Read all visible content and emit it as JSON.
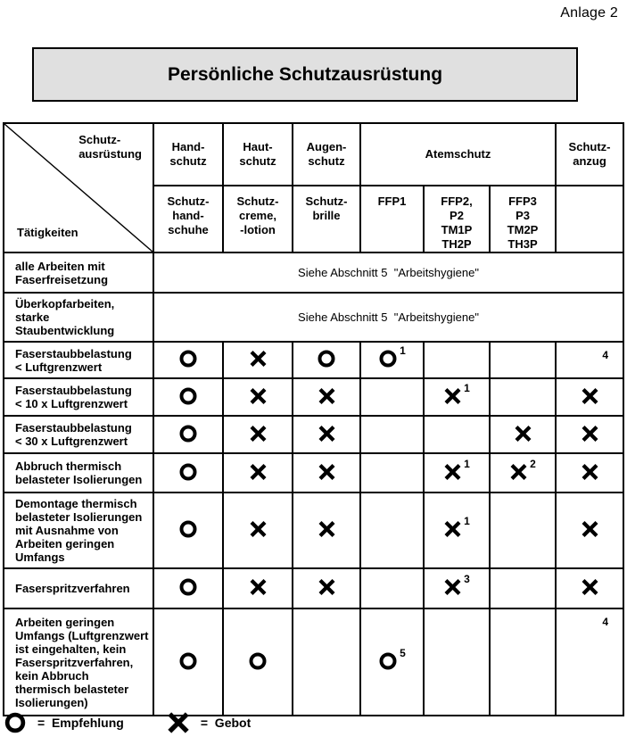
{
  "page": {
    "annotation": "Anlage 2"
  },
  "title": "Persönliche Schutzausrüstung",
  "table": {
    "corner": {
      "top_right": "Schutz-\nausrüstung",
      "bottom_left": "Tätigkeiten"
    },
    "header_row1": [
      "Hand-\nschutz",
      "Haut-\nschutz",
      "Augen-\nschutz",
      "Atemschutz",
      "Schutz-\nanzug"
    ],
    "header_row2": [
      "Schutz-\nhand-\nschuhe",
      "Schutz-\ncreme,\n-lotion",
      "Schutz-\nbrille",
      "FFP1",
      "FFP2,\nP2\nTM1P\nTH2P",
      "FFP3\nP3\nTM2P\nTH3P",
      ""
    ],
    "rows": [
      {
        "label": "alle Arbeiten mit\nFaserfreisetzung",
        "span": "Siehe Abschnitt 5  \"Arbeitshygiene\""
      },
      {
        "label": "Überkopfarbeiten,\nstarke Staubentwicklung",
        "span": "Siehe Abschnitt 5  \"Arbeitshygiene\""
      },
      {
        "label": "Faserstaubbelastung\n< Luftgrenzwert",
        "cells": [
          "O",
          "X",
          "O",
          "O^1",
          "",
          "",
          "^4"
        ]
      },
      {
        "label": "Faserstaubbelastung\n< 10 x Luftgrenzwert",
        "cells": [
          "O",
          "X",
          "X",
          "",
          "X^1",
          "",
          "X"
        ]
      },
      {
        "label": "Faserstaubbelastung\n< 30 x Luftgrenzwert",
        "cells": [
          "O",
          "X",
          "X",
          "",
          "",
          "X",
          "X"
        ]
      },
      {
        "label": "Abbruch thermisch\nbelasteter Isolierungen",
        "cells": [
          "O",
          "X",
          "X",
          "",
          "X^1",
          "X^2",
          "X"
        ]
      },
      {
        "label": "Demontage thermisch\nbelasteter Isolierungen\nmit Ausnahme von\nArbeiten geringen\nUmfangs",
        "cells": [
          "O",
          "X",
          "X",
          "",
          "X^1",
          "",
          "X"
        ]
      },
      {
        "label": "Faserspritzverfahren",
        "cells": [
          "O",
          "X",
          "X",
          "",
          "X^3",
          "",
          "X"
        ]
      },
      {
        "label": "Arbeiten geringen\nUmfangs (Luftgrenzwert\nist eingehalten, kein\nFaserspritzverfahren,\nkein Abbruch\nthermisch belasteter\nIsolierungen)",
        "cells": [
          "O",
          "O",
          "",
          "O^5",
          "",
          "",
          "^4"
        ]
      }
    ]
  },
  "legend": {
    "items": [
      {
        "symbol": "O",
        "label": "=  Empfehlung"
      },
      {
        "symbol": "X",
        "label": "=  Gebot"
      }
    ]
  },
  "symbols": {
    "O_meaning": "Empfehlung",
    "X_meaning": "Gebot"
  },
  "colors": {
    "title_bg": "#e0e0e0",
    "ink": "#000000",
    "paper": "#ffffff"
  }
}
